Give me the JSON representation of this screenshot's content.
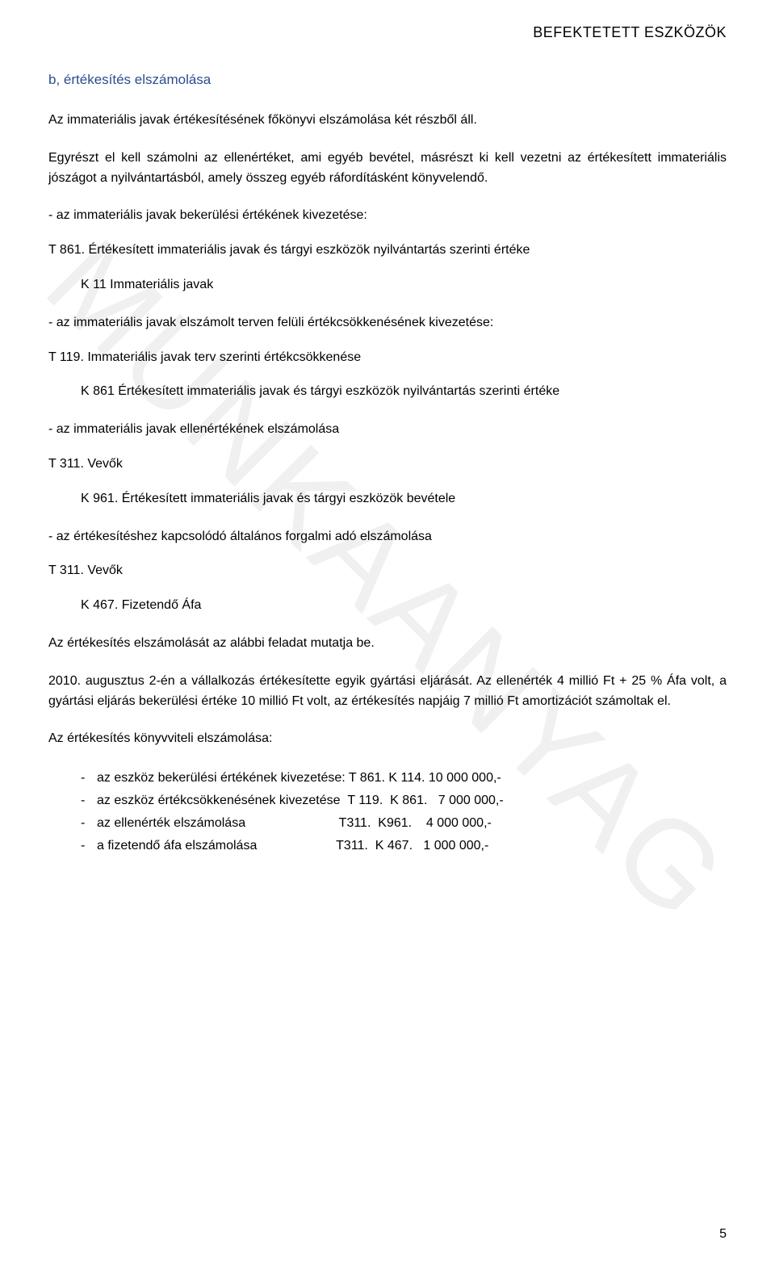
{
  "header": {
    "right": "BEFEKTETETT ESZKÖZÖK"
  },
  "watermark": "MUNKAANYAG",
  "section_heading": "b, értékesítés elszámolása",
  "paragraphs": {
    "p1": "Az immateriális javak értékesítésének főkönyvi elszámolása két részből áll.",
    "p2": "Egyrészt el kell számolni az ellenértéket, ami egyéb bevétel, másrészt ki kell vezetni az értékesített immateriális jószágot a nyilvántartásból, amely összeg egyéb ráfordításként könyvelendő.",
    "p3": "- az immateriális javak bekerülési értékének kivezetése:",
    "p4": "T 861. Értékesített immateriális javak és tárgyi eszközök nyilvántartás szerinti értéke",
    "p4_indent": "K 11 Immateriális javak",
    "p5": "- az immateriális javak elszámolt terven felüli értékcsökkenésének kivezetése:",
    "p6": "T 119. Immateriális javak terv szerinti értékcsökkenése",
    "p6_indent": "K 861 Értékesített immateriális javak és tárgyi eszközök nyilvántartás szerinti értéke",
    "p7": "- az immateriális javak ellenértékének elszámolása",
    "p8": "T 311. Vevők",
    "p8_indent": "K 961. Értékesített immateriális javak és tárgyi eszközök bevétele",
    "p9": "- az értékesítéshez kapcsolódó általános forgalmi adó elszámolása",
    "p10": "T 311. Vevők",
    "p10_indent": "K 467. Fizetendő Áfa",
    "p11": "Az értékesítés elszámolását az alábbi feladat mutatja be.",
    "p12": "2010. augusztus 2-én a vállalkozás értékesítette egyik gyártási eljárását. Az ellenérték 4 millió Ft + 25 % Áfa volt, a gyártási eljárás bekerülési értéke 10 millió Ft volt, az értékesítés napjáig 7 millió Ft amortizációt számoltak el.",
    "p13": "Az értékesítés könyvviteli elszámolása:"
  },
  "list": {
    "items": [
      "az eszköz bekerülési értékének kivezetése: T 861. K 114. 10 000 000,-",
      "az eszköz értékcsökkenésének kivezetése  T 119.  K 861.   7 000 000,-",
      "az ellenérték elszámolása                          T311.  K961.    4 000 000,-",
      "a fizetendő áfa elszámolása                      T311.  K 467.   1 000 000,-"
    ]
  },
  "page_number": "5"
}
